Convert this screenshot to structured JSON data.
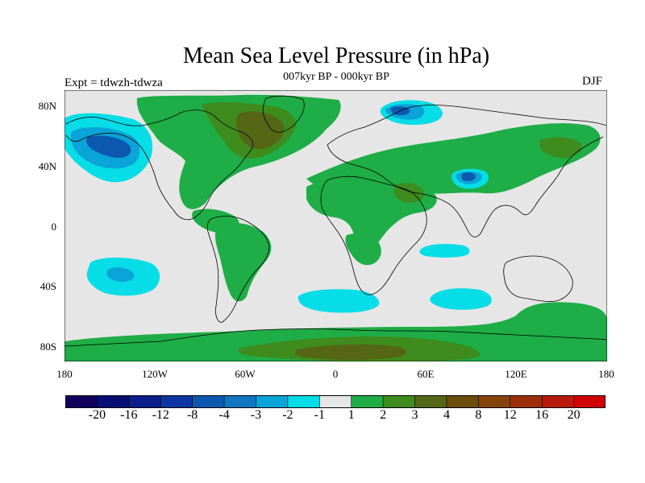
{
  "title": "Mean Sea Level Pressure (in hPa)",
  "subtitle": "007kyr BP - 000kyr BP",
  "experiment_label": "Expt = tdwzh-tdwza",
  "season": "DJF",
  "colors": {
    "land_ocean_background": "#e6e6e6",
    "coastline": "#000000"
  },
  "map": {
    "projection": "cylindrical equidistant",
    "lon_range": [
      -180,
      180
    ],
    "lat_range": [
      -90,
      90
    ],
    "y_ticks": [
      "80N",
      "40N",
      "0",
      "40S",
      "80S"
    ],
    "x_ticks": [
      "180",
      "120W",
      "60W",
      "0",
      "60E",
      "120E",
      "180"
    ]
  },
  "colorbar": {
    "colors": [
      "#12005f",
      "#060e73",
      "#0b1e8b",
      "#0d36a2",
      "#0c58b0",
      "#0e76c2",
      "#0aa4d8",
      "#06dde6",
      "#e6e6e6",
      "#1ead46",
      "#3d8c1d",
      "#556615",
      "#6b4d0c",
      "#864309",
      "#9e2e0b",
      "#b7190b",
      "#d10000"
    ],
    "labels": [
      "-20",
      "-16",
      "-12",
      "-8",
      "-4",
      "-3",
      "-2",
      "-1",
      "1",
      "2",
      "3",
      "4",
      "8",
      "12",
      "16",
      "20"
    ]
  },
  "anomaly_regions": [
    {
      "name": "north-pacific-low",
      "level": "-2",
      "color": "#06dde6"
    },
    {
      "name": "north-pacific-low-core",
      "level": "-3",
      "color": "#0aa4d8"
    },
    {
      "name": "north-pacific-low-center",
      "level": "-4",
      "color": "#0c58b0"
    },
    {
      "name": "arctic-siberia-low",
      "level": "-3",
      "color": "#0aa4d8"
    },
    {
      "name": "tibet-low",
      "level": "-4",
      "color": "#0c58b0"
    },
    {
      "name": "greenland-high",
      "level": "3",
      "color": "#556615"
    },
    {
      "name": "africa-arabia-high",
      "level": "2",
      "color": "#1ead46"
    },
    {
      "name": "antarctic-high",
      "level": "3",
      "color": "#556615"
    },
    {
      "name": "south-pacific-low",
      "level": "-2",
      "color": "#06dde6"
    },
    {
      "name": "south-indian-low",
      "level": "-1",
      "color": "#06dde6"
    },
    {
      "name": "south-atlantic-high",
      "level": "2",
      "color": "#1ead46"
    }
  ]
}
